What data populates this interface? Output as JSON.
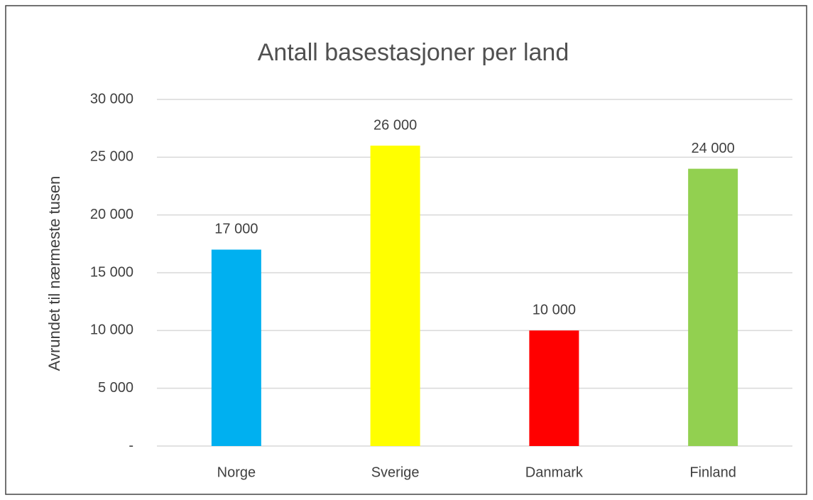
{
  "chart_data": {
    "type": "bar",
    "title": "Antall basestasjoner per land",
    "ylabel": "Avrundet til nærmeste tusen",
    "categories": [
      "Norge",
      "Sverige",
      "Danmark",
      "Finland"
    ],
    "values": [
      17000,
      26000,
      10000,
      24000
    ],
    "value_labels": [
      "17 000",
      "26 000",
      "10 000",
      "24 000"
    ],
    "colors": [
      "#00b0f0",
      "#ffff00",
      "#ff0000",
      "#92d050"
    ],
    "ylim": [
      0,
      30000
    ],
    "yticks": [
      {
        "value": 0,
        "label": "-"
      },
      {
        "value": 5000,
        "label": "5 000"
      },
      {
        "value": 10000,
        "label": "10 000"
      },
      {
        "value": 15000,
        "label": "15 000"
      },
      {
        "value": 20000,
        "label": "20 000"
      },
      {
        "value": 25000,
        "label": "25 000"
      },
      {
        "value": 30000,
        "label": "30 000"
      }
    ],
    "grid": true
  }
}
